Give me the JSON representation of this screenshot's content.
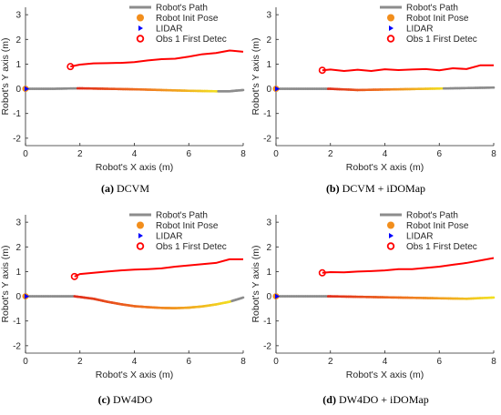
{
  "chart_data": [
    {
      "type": "line",
      "caption_tag": "(a)",
      "caption_text": "DCVM",
      "xlabel": "Robot's X axis (m)",
      "ylabel": "Robot's Y axis (m)",
      "xlim": [
        0,
        8
      ],
      "ylim": [
        -2.3,
        3.3
      ],
      "xticks": [
        0,
        2,
        4,
        6,
        8
      ],
      "yticks": [
        -2,
        -1,
        0,
        1,
        2,
        3
      ],
      "legend_position": "top-right",
      "legend": [
        "Robot's Path",
        "Robot Init Pose",
        "LIDAR",
        "Obs 1 First Detec"
      ],
      "colors": {
        "path": "#8c8c8c",
        "init": "#f28e1c",
        "lidar": "#0000ff",
        "obs": "#ff0000"
      },
      "init_pose": [
        0,
        0
      ],
      "obs_first_detection": [
        1.65,
        0.9
      ],
      "robot_path": {
        "x": [
          0,
          1,
          2,
          3,
          4,
          5,
          6,
          7,
          7.5,
          8
        ],
        "y": [
          0,
          0,
          0.02,
          0,
          -0.02,
          -0.05,
          -0.08,
          -0.1,
          -0.1,
          -0.05
        ]
      },
      "robot_path_gray_until_x": 1.9,
      "robot_path_gray_after_x": 7.1,
      "obstacle_path": {
        "x": [
          1.65,
          2,
          2.5,
          3,
          3.5,
          4,
          4.5,
          5,
          5.5,
          6,
          6.5,
          7,
          7.5,
          8
        ],
        "y": [
          0.9,
          0.98,
          1.03,
          1.04,
          1.05,
          1.08,
          1.15,
          1.2,
          1.22,
          1.3,
          1.4,
          1.45,
          1.55,
          1.5
        ]
      }
    },
    {
      "type": "line",
      "caption_tag": "(b)",
      "caption_text": "DCVM + iDOMap",
      "xlabel": "Robot's X axis (m)",
      "ylabel": "Robot's Y axis (m)",
      "xlim": [
        0,
        8
      ],
      "ylim": [
        -2.3,
        3.3
      ],
      "xticks": [
        0,
        2,
        4,
        6,
        8
      ],
      "yticks": [
        -2,
        -1,
        0,
        1,
        2,
        3
      ],
      "legend_position": "top-right",
      "legend": [
        "Robot's Path",
        "Robot Init Pose",
        "LIDAR",
        "Obs 1 First Detec"
      ],
      "colors": {
        "path": "#8c8c8c",
        "init": "#f28e1c",
        "lidar": "#0000ff",
        "obs": "#ff0000"
      },
      "init_pose": [
        0,
        0
      ],
      "obs_first_detection": [
        1.7,
        0.75
      ],
      "robot_path": {
        "x": [
          0,
          1,
          2,
          3,
          4,
          5,
          6,
          7,
          8
        ],
        "y": [
          0,
          0,
          0,
          -0.05,
          -0.03,
          -0.01,
          0.01,
          0.03,
          0.05
        ]
      },
      "robot_path_gray_until_x": 1.9,
      "robot_path_gray_after_x": 6.2,
      "obstacle_path": {
        "x": [
          1.7,
          2,
          2.5,
          3,
          3.5,
          4,
          4.5,
          5,
          5.5,
          6,
          6.5,
          7,
          7.5,
          8
        ],
        "y": [
          0.75,
          0.78,
          0.72,
          0.77,
          0.72,
          0.79,
          0.76,
          0.78,
          0.8,
          0.75,
          0.83,
          0.8,
          0.95,
          0.95
        ]
      }
    },
    {
      "type": "line",
      "caption_tag": "(c)",
      "caption_text": "DW4DO",
      "xlabel": "Robot's X axis (m)",
      "ylabel": "Robot's Y axis (m)",
      "xlim": [
        0,
        8
      ],
      "ylim": [
        -2.3,
        3.3
      ],
      "xticks": [
        0,
        2,
        4,
        6,
        8
      ],
      "yticks": [
        -2,
        -1,
        0,
        1,
        2,
        3
      ],
      "legend_position": "top-right",
      "legend": [
        "Robot's Path",
        "Robot Init Pose",
        "LIDAR",
        "Obs 1 First Detec"
      ],
      "colors": {
        "path": "#8c8c8c",
        "init": "#f28e1c",
        "lidar": "#0000ff",
        "obs": "#ff0000"
      },
      "init_pose": [
        0,
        0
      ],
      "obs_first_detection": [
        1.8,
        0.8
      ],
      "robot_path": {
        "x": [
          0,
          1,
          1.8,
          2.5,
          3,
          3.5,
          4,
          4.5,
          5,
          5.5,
          6,
          6.5,
          7,
          7.5,
          8
        ],
        "y": [
          0,
          0,
          0,
          -0.1,
          -0.22,
          -0.32,
          -0.4,
          -0.44,
          -0.47,
          -0.48,
          -0.46,
          -0.41,
          -0.33,
          -0.22,
          -0.05
        ]
      },
      "robot_path_gray_until_x": 1.8,
      "robot_path_gray_after_x": 7.6,
      "obstacle_path": {
        "x": [
          1.8,
          2,
          2.5,
          3,
          3.5,
          4,
          4.5,
          5,
          5.5,
          6,
          6.5,
          7,
          7.5,
          8
        ],
        "y": [
          0.8,
          0.9,
          0.95,
          1.0,
          1.05,
          1.08,
          1.1,
          1.13,
          1.2,
          1.25,
          1.3,
          1.35,
          1.5,
          1.5
        ]
      }
    },
    {
      "type": "line",
      "caption_tag": "(d)",
      "caption_text": "DW4DO + iDOMap",
      "xlabel": "Robot's X axis (m)",
      "ylabel": "Robot's Y axis (m)",
      "xlim": [
        0,
        8
      ],
      "ylim": [
        -2.3,
        3.3
      ],
      "xticks": [
        0,
        2,
        4,
        6,
        8
      ],
      "yticks": [
        -2,
        -1,
        0,
        1,
        2,
        3
      ],
      "legend_position": "top-right",
      "legend": [
        "Robot's Path",
        "Robot Init Pose",
        "LIDAR",
        "Obs 1 First Detec"
      ],
      "colors": {
        "path": "#8c8c8c",
        "init": "#f28e1c",
        "lidar": "#0000ff",
        "obs": "#ff0000"
      },
      "init_pose": [
        0,
        0
      ],
      "obs_first_detection": [
        1.7,
        0.95
      ],
      "robot_path": {
        "x": [
          0,
          1,
          2,
          3,
          4,
          5,
          6,
          7,
          8
        ],
        "y": [
          0,
          0,
          0,
          -0.02,
          -0.04,
          -0.06,
          -0.08,
          -0.1,
          -0.05
        ]
      },
      "robot_path_gray_until_x": 1.9,
      "robot_path_gray_after_x": 8.1,
      "obstacle_path": {
        "x": [
          1.7,
          2,
          2.5,
          3,
          3.5,
          4,
          4.5,
          5,
          5.5,
          6,
          6.5,
          7,
          7.5,
          8
        ],
        "y": [
          0.95,
          0.98,
          0.97,
          1.0,
          1.02,
          1.05,
          1.1,
          1.1,
          1.15,
          1.2,
          1.28,
          1.35,
          1.45,
          1.55
        ]
      }
    }
  ]
}
